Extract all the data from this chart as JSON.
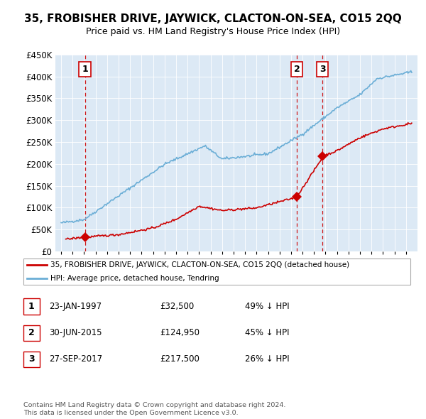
{
  "title": "35, FROBISHER DRIVE, JAYWICK, CLACTON-ON-SEA, CO15 2QQ",
  "subtitle": "Price paid vs. HM Land Registry's House Price Index (HPI)",
  "ylim": [
    0,
    450000
  ],
  "yticks": [
    0,
    50000,
    100000,
    150000,
    200000,
    250000,
    300000,
    350000,
    400000,
    450000
  ],
  "ytick_labels": [
    "£0",
    "£50K",
    "£100K",
    "£150K",
    "£200K",
    "£250K",
    "£300K",
    "£350K",
    "£400K",
    "£450K"
  ],
  "background_color": "#dce9f5",
  "hpi_color": "#6baed6",
  "price_color": "#cc0000",
  "dashed_line_color": "#cc0000",
  "transactions": [
    {
      "date_num": 1997.07,
      "price": 32500,
      "label": "1"
    },
    {
      "date_num": 2015.5,
      "price": 124950,
      "label": "2"
    },
    {
      "date_num": 2017.75,
      "price": 217500,
      "label": "3"
    }
  ],
  "legend_entries": [
    "35, FROBISHER DRIVE, JAYWICK, CLACTON-ON-SEA, CO15 2QQ (detached house)",
    "HPI: Average price, detached house, Tendring"
  ],
  "table_rows": [
    [
      "1",
      "23-JAN-1997",
      "£32,500",
      "49% ↓ HPI"
    ],
    [
      "2",
      "30-JUN-2015",
      "£124,950",
      "45% ↓ HPI"
    ],
    [
      "3",
      "27-SEP-2017",
      "£217,500",
      "26% ↓ HPI"
    ]
  ],
  "footer": "Contains HM Land Registry data © Crown copyright and database right 2024.\nThis data is licensed under the Open Government Licence v3.0."
}
